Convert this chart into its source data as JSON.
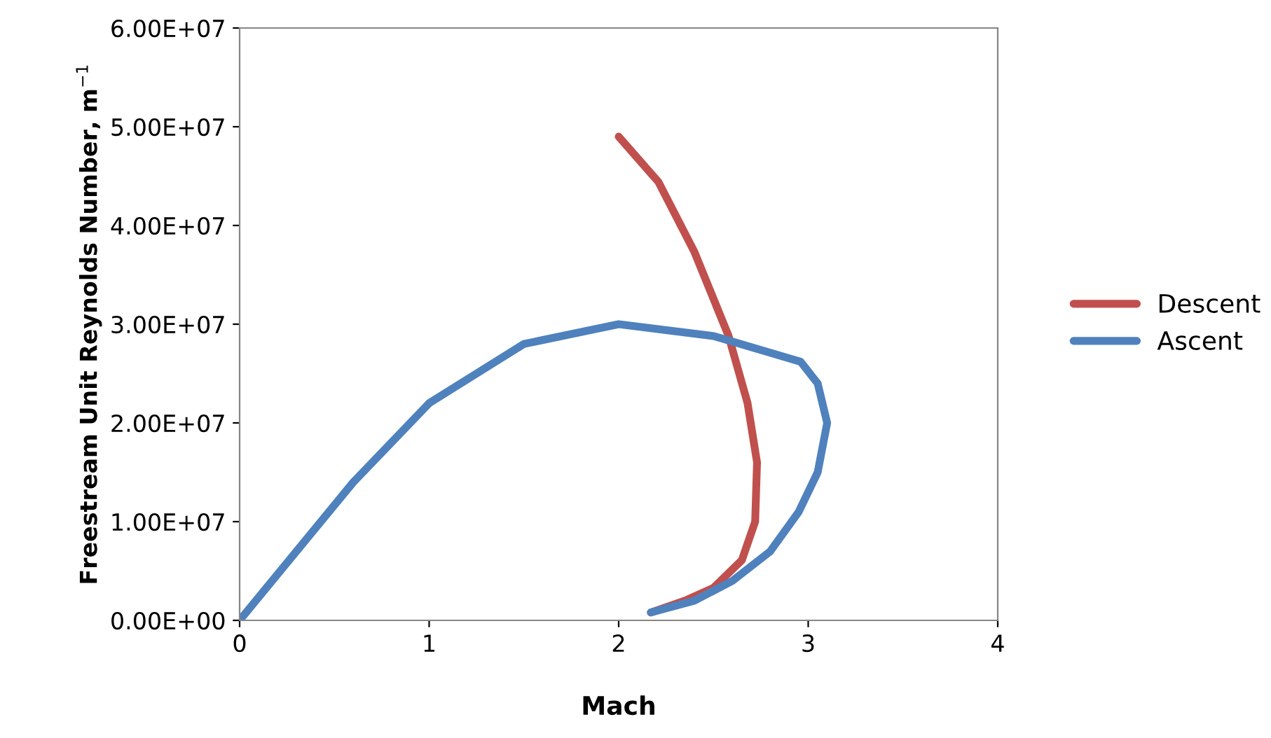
{
  "chart_data": {
    "type": "line",
    "xlabel": "Mach",
    "ylabel": "Freestream Unit Reynolds Number, m$^{−1}$",
    "xlim": [
      0,
      4
    ],
    "xticks": [
      0,
      1,
      2,
      3,
      4
    ],
    "ylim": [
      0,
      60000000
    ],
    "yticks": [
      {
        "value": 0,
        "label": "0.00E+00"
      },
      {
        "value": 10000000,
        "label": "1.00E+07"
      },
      {
        "value": 20000000,
        "label": "2.00E+07"
      },
      {
        "value": 30000000,
        "label": "3.00E+07"
      },
      {
        "value": 40000000,
        "label": "4.00E+07"
      },
      {
        "value": 50000000,
        "label": "5.00E+07"
      },
      {
        "value": 60000000,
        "label": "6.00E+07"
      }
    ],
    "grid": false,
    "legend": "right",
    "marker": "none",
    "line_style": "solid",
    "series": [
      {
        "name": "Descent",
        "color": "#c0504d",
        "x": [
          2.0,
          2.21,
          2.4,
          2.58,
          2.68,
          2.73,
          2.72,
          2.65,
          2.5,
          2.35,
          2.17
        ],
        "values": [
          49000000,
          44400000,
          37300000,
          28800000,
          22000000,
          16000000,
          10000000,
          6100000,
          3300000,
          2000000,
          800000
        ]
      },
      {
        "name": "Ascent",
        "color": "#4f81bd",
        "x": [
          0,
          0.6,
          1.0,
          1.5,
          2.0,
          2.5,
          2.96,
          3.05,
          3.1,
          3.05,
          2.95,
          2.8,
          2.6,
          2.4,
          2.17
        ],
        "values": [
          0,
          14000000,
          22000000,
          28000000,
          30000000,
          28800000,
          26200000,
          24000000,
          20000000,
          15000000,
          11000000,
          7000000,
          4000000,
          2000000,
          800000
        ]
      }
    ]
  }
}
